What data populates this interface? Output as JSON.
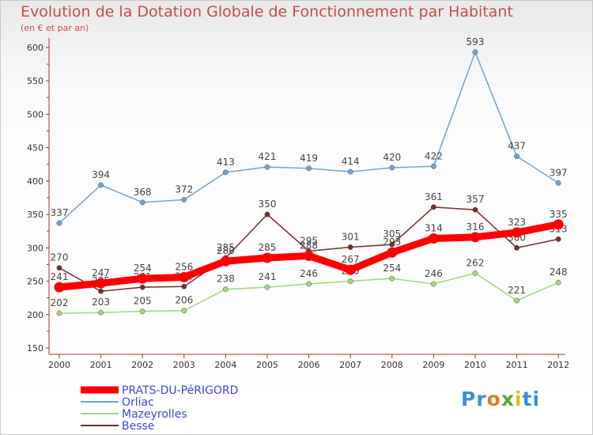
{
  "title": "Evolution de la Dotation Globale de Fonctionnement par Habitant",
  "subtitle": "(en € et par an)",
  "logo_text": "Proxiti",
  "chart_data": {
    "type": "line",
    "x": [
      "2000",
      "2001",
      "2002",
      "2003",
      "2004",
      "2005",
      "2006",
      "2007",
      "2008",
      "2009",
      "2010",
      "2011",
      "2012"
    ],
    "ylim": [
      150,
      600
    ],
    "yticks": [
      150,
      200,
      250,
      300,
      350,
      400,
      450,
      500,
      550,
      600
    ],
    "grid": false,
    "legend_position": "bottom-left",
    "series": [
      {
        "name": "PRATS-DU-PéRIGORD",
        "color": "#ff0000",
        "width": 9,
        "values": [
          241,
          247,
          254,
          256,
          280,
          285,
          288,
          267,
          293,
          314,
          316,
          323,
          335
        ]
      },
      {
        "name": "Orliac",
        "color": "#6ea4d6",
        "width": 1.5,
        "values": [
          337,
          394,
          368,
          372,
          413,
          421,
          419,
          414,
          420,
          422,
          593,
          437,
          397
        ]
      },
      {
        "name": "Mazeyrolles",
        "color": "#9fd87a",
        "width": 1.5,
        "values": [
          202,
          203,
          205,
          206,
          238,
          241,
          246,
          250,
          254,
          246,
          262,
          221,
          248
        ]
      },
      {
        "name": "Besse",
        "color": "#7a2a2a",
        "width": 1.5,
        "values": [
          270,
          235,
          241,
          242,
          285,
          350,
          295,
          301,
          305,
          361,
          357,
          300,
          313
        ]
      }
    ]
  }
}
